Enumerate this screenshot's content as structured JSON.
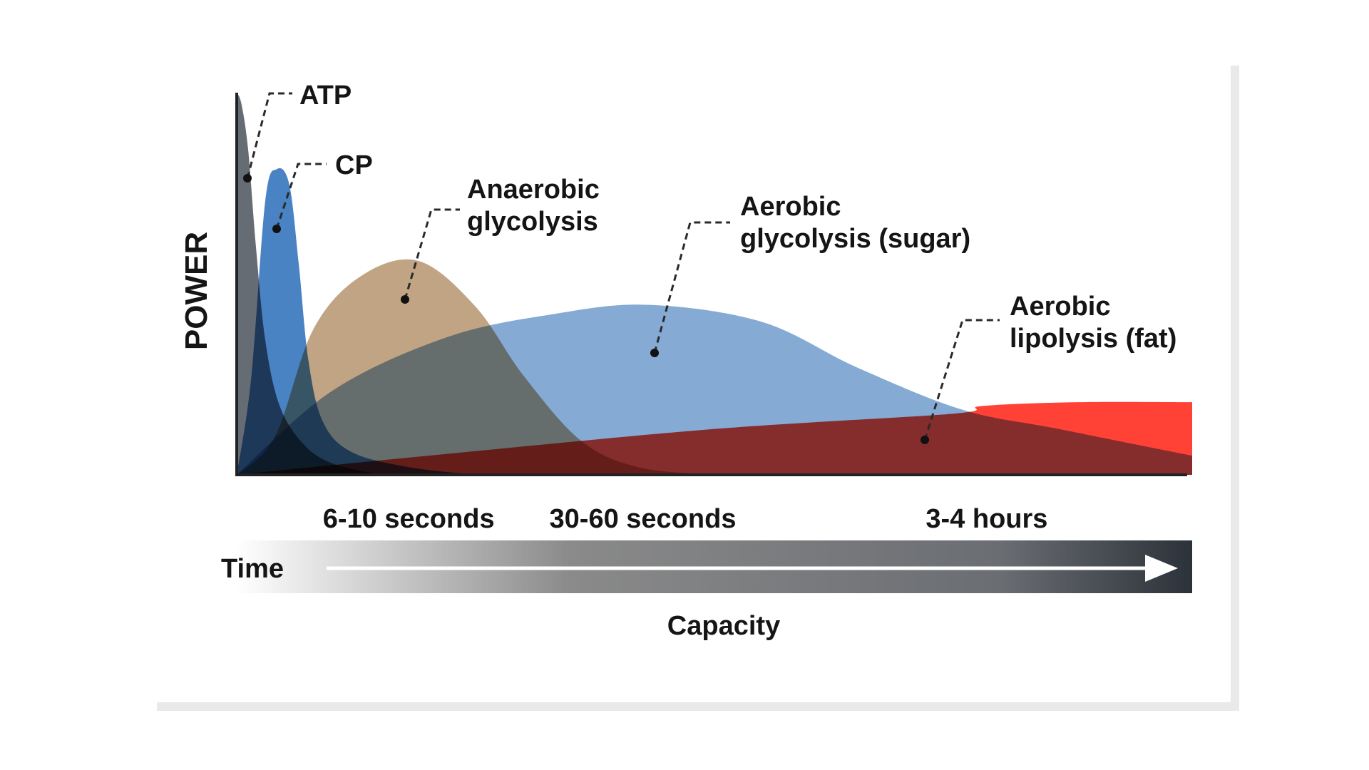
{
  "chart_data": {
    "type": "area",
    "title": "",
    "ylabel": "POWER",
    "xlabel": "Capacity",
    "time_label": "Time",
    "x_ticks": [
      {
        "label": "6-10 seconds",
        "t": 0.18
      },
      {
        "label": "30-60 seconds",
        "t": 0.425
      },
      {
        "label": "3-4 hours",
        "t": 0.785
      }
    ],
    "ylim": [
      0,
      1
    ],
    "xlim": [
      0,
      1
    ],
    "grid": false,
    "series": [
      {
        "name": "Aerobic lipolysis (fat)",
        "color": "#ff4136",
        "points": [
          [
            0,
            0
          ],
          [
            0.2,
            0.05
          ],
          [
            0.5,
            0.12
          ],
          [
            0.75,
            0.16
          ],
          [
            0.78,
            0.18
          ],
          [
            0.88,
            0.19
          ],
          [
            1.0,
            0.19
          ]
        ]
      },
      {
        "name": "Aerobic glycolysis (sugar)",
        "color": "#7ba3cf",
        "points": [
          [
            0,
            0
          ],
          [
            0.1,
            0.22
          ],
          [
            0.22,
            0.36
          ],
          [
            0.33,
            0.42
          ],
          [
            0.43,
            0.445
          ],
          [
            0.55,
            0.4
          ],
          [
            0.65,
            0.28
          ],
          [
            0.76,
            0.17
          ],
          [
            0.86,
            0.12
          ],
          [
            1.0,
            0.05
          ]
        ]
      },
      {
        "name": "Anaerobic glycolysis",
        "color": "#bb9c78",
        "points": [
          [
            0,
            0
          ],
          [
            0.04,
            0.1
          ],
          [
            0.08,
            0.38
          ],
          [
            0.13,
            0.52
          ],
          [
            0.19,
            0.56
          ],
          [
            0.25,
            0.44
          ],
          [
            0.3,
            0.26
          ],
          [
            0.36,
            0.09
          ],
          [
            0.42,
            0.02
          ],
          [
            0.5,
            0
          ]
        ]
      },
      {
        "name": "CP",
        "color": "#3a78bf",
        "points": [
          [
            0,
            0
          ],
          [
            0.015,
            0.25
          ],
          [
            0.03,
            0.72
          ],
          [
            0.042,
            0.8
          ],
          [
            0.055,
            0.76
          ],
          [
            0.065,
            0.55
          ],
          [
            0.075,
            0.3
          ],
          [
            0.09,
            0.14
          ],
          [
            0.12,
            0.06
          ],
          [
            0.18,
            0.02
          ],
          [
            0.25,
            0
          ]
        ]
      },
      {
        "name": "ATP",
        "color": "#596068",
        "points": [
          [
            0,
            1
          ],
          [
            0.005,
            0.97
          ],
          [
            0.012,
            0.85
          ],
          [
            0.02,
            0.6
          ],
          [
            0.03,
            0.35
          ],
          [
            0.045,
            0.18
          ],
          [
            0.07,
            0.08
          ],
          [
            0.1,
            0.03
          ],
          [
            0.15,
            0
          ]
        ]
      }
    ],
    "annotations": [
      {
        "text_lines": [
          "ATP"
        ],
        "series": "ATP"
      },
      {
        "text_lines": [
          "CP"
        ],
        "series": "CP"
      },
      {
        "text_lines": [
          "Anaerobic",
          "glycolysis"
        ],
        "series": "Anaerobic glycolysis"
      },
      {
        "text_lines": [
          "Aerobic",
          "glycolysis (sugar)"
        ],
        "series": "Aerobic glycolysis (sugar)"
      },
      {
        "text_lines": [
          "Aerobic",
          "lipolysis (fat)"
        ],
        "series": "Aerobic lipolysis (fat)"
      }
    ]
  }
}
